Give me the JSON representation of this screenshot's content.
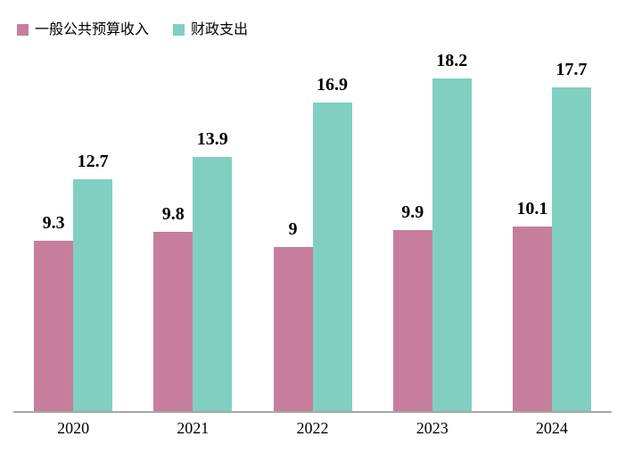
{
  "chart_data": {
    "type": "bar",
    "categories": [
      "2020",
      "2021",
      "2022",
      "2023",
      "2024"
    ],
    "series": [
      {
        "name": "一般公共预算收入",
        "color": "#C77E9D",
        "values": [
          9.3,
          9.8,
          9,
          9.9,
          10.1
        ]
      },
      {
        "name": "财政支出",
        "color": "#81CFC1",
        "values": [
          12.7,
          13.9,
          16.9,
          18.2,
          17.7
        ]
      }
    ],
    "value_labels": {
      "一般公共预算收入": [
        "9.3",
        "9.8",
        "9",
        "9.9",
        "10.1"
      ],
      "财政支出": [
        "12.7",
        "13.9",
        "16.9",
        "18.2",
        "17.7"
      ]
    },
    "ylim": [
      0,
      20
    ],
    "grid": false,
    "legend_position": "top-left",
    "axis_line_color": "#A6A6A6",
    "value_label_color": "#000000",
    "tick_label_color": "#000000"
  },
  "legend": {
    "items": [
      {
        "label": "一般公共预算收入",
        "color": "#C77E9D"
      },
      {
        "label": "财政支出",
        "color": "#81CFC1"
      }
    ]
  }
}
